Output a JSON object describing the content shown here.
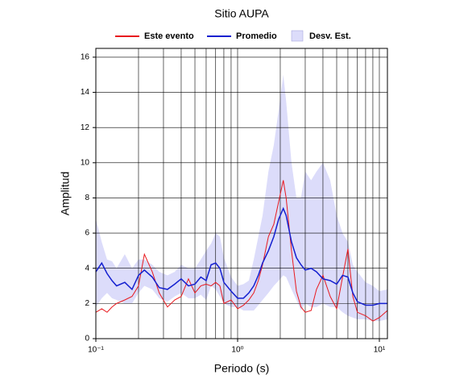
{
  "chart_data": {
    "type": "line",
    "title": "Sitio AUPA",
    "x_label": "Periodo (s)",
    "y_label": "Amplitud",
    "x": [
      0.1,
      0.11,
      0.12,
      0.13,
      0.14,
      0.16,
      0.18,
      0.2,
      0.22,
      0.25,
      0.28,
      0.32,
      0.36,
      0.4,
      0.45,
      0.5,
      0.55,
      0.6,
      0.65,
      0.7,
      0.75,
      0.8,
      0.9,
      1.0,
      1.1,
      1.2,
      1.3,
      1.4,
      1.5,
      1.65,
      1.8,
      1.95,
      2.1,
      2.2,
      2.4,
      2.6,
      2.8,
      3.0,
      3.3,
      3.6,
      4.0,
      4.5,
      5.0,
      5.5,
      6.0,
      6.5,
      7.0,
      8.0,
      9.0,
      10,
      11.4
    ],
    "series": [
      {
        "name": "Este evento",
        "color": "#e8191e",
        "values": [
          1.5,
          1.7,
          1.5,
          1.8,
          2.0,
          2.2,
          2.4,
          3.0,
          4.8,
          3.8,
          2.6,
          1.8,
          2.2,
          2.4,
          3.4,
          2.6,
          3.0,
          3.1,
          3.0,
          3.2,
          3.0,
          2.0,
          2.2,
          1.7,
          1.9,
          2.2,
          2.6,
          3.3,
          4.2,
          5.8,
          6.5,
          7.8,
          9.0,
          8.0,
          5.0,
          2.7,
          1.8,
          1.5,
          1.6,
          2.8,
          3.6,
          2.4,
          1.7,
          3.5,
          5.1,
          2.4,
          1.5,
          1.3,
          1.0,
          1.2,
          1.6
        ]
      },
      {
        "name": "Promedio",
        "color": "#1420d0",
        "values": [
          3.8,
          4.3,
          3.7,
          3.3,
          3.0,
          3.2,
          2.8,
          3.6,
          3.9,
          3.5,
          2.9,
          2.8,
          3.1,
          3.4,
          3.0,
          3.1,
          3.5,
          3.3,
          4.2,
          4.3,
          4.0,
          3.2,
          2.7,
          2.3,
          2.3,
          2.6,
          3.0,
          3.6,
          4.3,
          5.0,
          5.8,
          6.8,
          7.4,
          7.0,
          5.5,
          4.6,
          4.2,
          3.9,
          4.0,
          3.8,
          3.4,
          3.3,
          3.1,
          3.6,
          3.5,
          2.6,
          2.1,
          1.9,
          1.9,
          2.0,
          2.0
        ]
      },
      {
        "name": "Desv. Est.",
        "color": "#dcdcfa",
        "upper": [
          6.8,
          5.5,
          4.5,
          4.4,
          4.0,
          4.8,
          4.0,
          4.5,
          4.5,
          4.2,
          3.8,
          3.6,
          3.8,
          4.2,
          4.0,
          4.0,
          4.5,
          5.0,
          5.4,
          6.0,
          5.8,
          4.6,
          3.5,
          3.0,
          3.1,
          3.3,
          4.5,
          5.8,
          7.0,
          9.5,
          11.0,
          13.0,
          15.0,
          13.5,
          10.0,
          8.0,
          8.0,
          9.5,
          9.0,
          9.5,
          10.0,
          9.0,
          7.0,
          6.0,
          5.5,
          4.2,
          3.8,
          3.2,
          3.0,
          2.7,
          2.8
        ],
        "lower": [
          1.8,
          2.3,
          2.6,
          2.3,
          2.2,
          2.0,
          2.0,
          2.6,
          3.0,
          2.8,
          2.3,
          2.1,
          2.4,
          2.6,
          2.3,
          2.3,
          2.5,
          2.2,
          3.0,
          2.8,
          2.4,
          2.0,
          1.8,
          1.8,
          1.6,
          1.6,
          1.6,
          1.9,
          2.2,
          2.6,
          3.0,
          3.3,
          3.6,
          3.5,
          2.8,
          2.2,
          1.6,
          2.0,
          1.8,
          1.8,
          2.0,
          1.8,
          1.8,
          1.5,
          1.3,
          1.2,
          1.1,
          1.1,
          1.0,
          1.0,
          1.1
        ]
      }
    ],
    "xlim": [
      0.1,
      11.4
    ],
    "xlog": true,
    "xticks": [
      {
        "value": 0.1,
        "label": "10⁻¹"
      },
      {
        "value": 1,
        "label": "10⁰"
      },
      {
        "value": 10,
        "label": "10¹"
      }
    ],
    "ylim": [
      0,
      16.5
    ],
    "yticks": [
      0,
      2,
      4,
      6,
      8,
      10,
      12,
      14,
      16
    ],
    "grid": true,
    "legend": "top"
  }
}
